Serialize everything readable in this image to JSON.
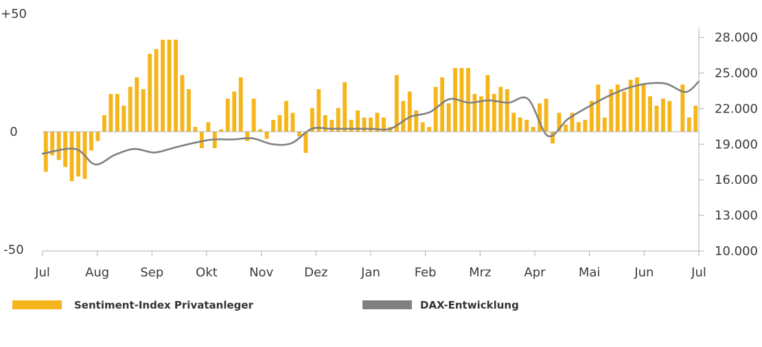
{
  "chart_data": {
    "type": "bar",
    "colors": {
      "bar": "#F5B51B",
      "line": "#808080",
      "axis": "#b0b0b0"
    },
    "left_axis": {
      "ticks": [
        50,
        0,
        -50
      ],
      "labels": [
        "+50",
        "0",
        "-50"
      ],
      "range": [
        -50,
        50
      ]
    },
    "right_axis": {
      "ticks": [
        10000,
        13000,
        16000,
        19000,
        22000,
        25000,
        28000
      ],
      "labels": [
        "10.000",
        "13.000",
        "16.000",
        "19.000",
        "22.000",
        "25.000",
        "28.000"
      ],
      "range": [
        10000,
        30000
      ]
    },
    "months": [
      "Jul",
      "Aug",
      "Sep",
      "Okt",
      "Nov",
      "Dez",
      "Jan",
      "Feb",
      "Mrz",
      "Apr",
      "Mai",
      "Jun",
      "Jul"
    ],
    "series": [
      {
        "name": "Sentiment-Index Privatanleger",
        "type": "bar",
        "values": [
          -17,
          -10,
          -12,
          -15,
          -21,
          -19,
          -20,
          -8,
          -4,
          7,
          16,
          16,
          11,
          19,
          23,
          18,
          33,
          35,
          39,
          39,
          39,
          24,
          18,
          2,
          -7,
          4,
          -7,
          1,
          14,
          17,
          23,
          -4,
          14,
          1,
          -3,
          5,
          7,
          13,
          8,
          -2,
          -9,
          10,
          18,
          7,
          5,
          10,
          21,
          5,
          9,
          6,
          6,
          8,
          6,
          2,
          24,
          13,
          17,
          9,
          4,
          2,
          19,
          23,
          12,
          27,
          27,
          27,
          16,
          15,
          24,
          16,
          19,
          18,
          8,
          6,
          5,
          2,
          12,
          14,
          -5,
          8,
          3,
          8,
          4,
          5,
          13,
          20,
          6,
          18,
          20,
          17,
          22,
          23,
          20,
          15,
          11,
          14,
          13,
          0,
          20,
          6,
          11
        ]
      },
      {
        "name": "DAX-Entwicklung",
        "type": "line",
        "x": [
          0,
          5,
          8,
          11,
          14,
          17,
          20,
          23,
          26,
          29,
          32,
          35,
          38,
          41,
          44,
          47,
          50,
          53,
          56,
          59,
          62,
          65,
          68,
          71,
          74,
          77,
          80,
          83,
          86,
          89,
          92,
          95,
          98,
          100
        ],
        "values": [
          18200,
          18600,
          17300,
          18100,
          18600,
          18300,
          18700,
          19100,
          19400,
          19400,
          19500,
          19000,
          19100,
          20300,
          20300,
          20300,
          20300,
          20300,
          21300,
          21700,
          22800,
          22500,
          22700,
          22500,
          22800,
          19700,
          21100,
          22100,
          23000,
          23700,
          24100,
          24100,
          23400,
          24300
        ]
      }
    ],
    "legend": {
      "placement": "bottom-left"
    }
  }
}
